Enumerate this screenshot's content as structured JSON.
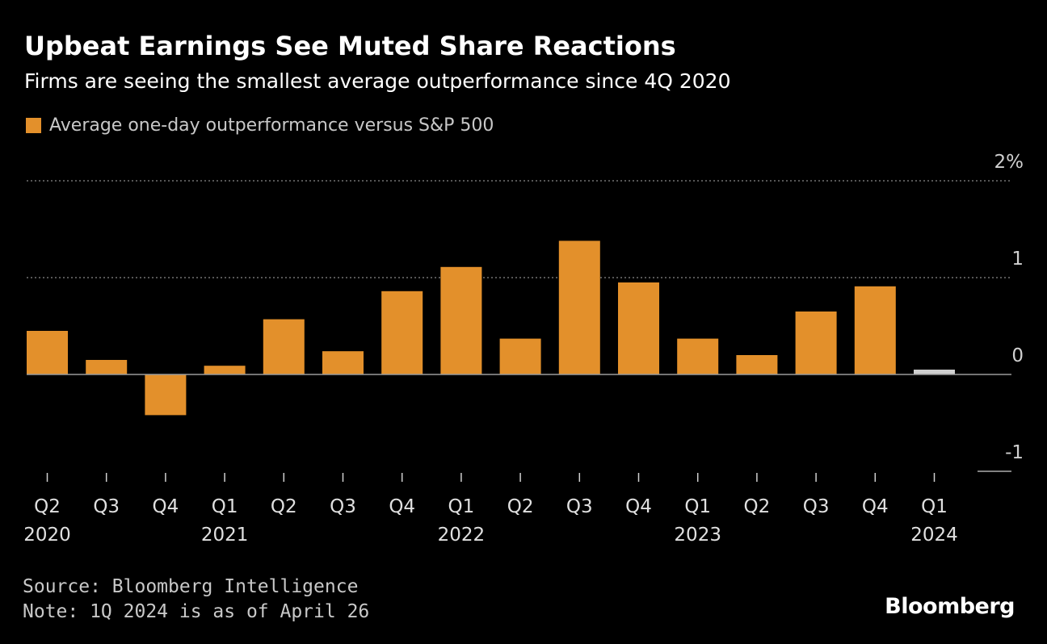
{
  "header": {
    "title": "Upbeat Earnings See Muted Share Reactions",
    "subtitle": "Firms are seeing the smallest average outperformance since 4Q 2020"
  },
  "legend": {
    "label": "Average one-day outperformance versus S&P 500"
  },
  "footer": {
    "source": "Source: Bloomberg Intelligence",
    "note": "Note: 1Q 2024 is as of April 26",
    "brand": "Bloomberg"
  },
  "colors": {
    "bar": "#e3902b",
    "bar_highlight": "#cfcfcf",
    "background": "#000000",
    "grid": "#8a8a8a"
  },
  "chart_data": {
    "type": "bar",
    "categories": [
      "Q2 2020",
      "Q3 2020",
      "Q4 2020",
      "Q1 2021",
      "Q2 2021",
      "Q3 2021",
      "Q4 2021",
      "Q1 2022",
      "Q2 2022",
      "Q3 2022",
      "Q4 2022",
      "Q1 2023",
      "Q2 2023",
      "Q3 2023",
      "Q4 2023",
      "Q1 2024"
    ],
    "quarter_labels": [
      "Q2",
      "Q3",
      "Q4",
      "Q1",
      "Q2",
      "Q3",
      "Q4",
      "Q1",
      "Q2",
      "Q3",
      "Q4",
      "Q1",
      "Q2",
      "Q3",
      "Q4",
      "Q1"
    ],
    "year_labels": [
      {
        "index": 0,
        "label": "2020"
      },
      {
        "index": 3,
        "label": "2021"
      },
      {
        "index": 7,
        "label": "2022"
      },
      {
        "index": 11,
        "label": "2023"
      },
      {
        "index": 15,
        "label": "2024"
      }
    ],
    "series": [
      {
        "values": [
          0.45,
          0.15,
          -0.42,
          0.09,
          0.57,
          0.24,
          0.86,
          1.11,
          0.37,
          1.38,
          0.95,
          0.37,
          0.2,
          0.65,
          0.91,
          0.05
        ]
      }
    ],
    "highlight_index": 15,
    "ylim": [
      -1,
      2
    ],
    "yticks": [
      {
        "value": 2,
        "label": "2%"
      },
      {
        "value": 1,
        "label": "1"
      },
      {
        "value": 0,
        "label": "0"
      },
      {
        "value": -1,
        "label": "-1"
      }
    ],
    "grid": true,
    "legend_position": "top-left"
  }
}
